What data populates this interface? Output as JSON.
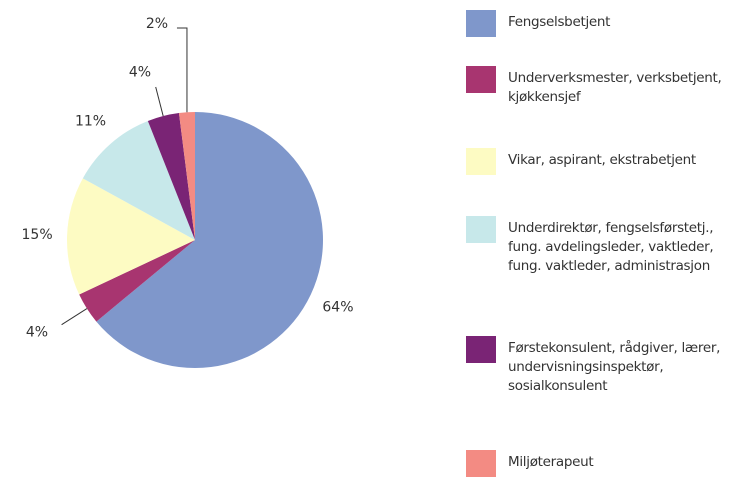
{
  "chart_data": {
    "type": "pie",
    "categories": [
      "Fengselsbetjent",
      "Underverksmester, verksbetjent,\nkjøkkensjef",
      "Vikar, aspirant, ekstrabetjent",
      "Underdirektør, fengselsførstetj.,\nfung. avdelingsleder, vaktleder,\nfung. vaktleder, administrasjon",
      "Førstekonsulent, rådgiver, lærer,\nundervisningsinspektør,\nsosialkonsulent",
      "Miljøterapeut"
    ],
    "values": [
      64,
      4,
      15,
      11,
      4,
      2
    ],
    "value_labels": [
      "64%",
      "4%",
      "15%",
      "11%",
      "4%",
      "2%"
    ],
    "colors": [
      "#7f97cb",
      "#a83570",
      "#fdfbc3",
      "#c7e8ea",
      "#7a2475",
      "#f38b83"
    ]
  }
}
